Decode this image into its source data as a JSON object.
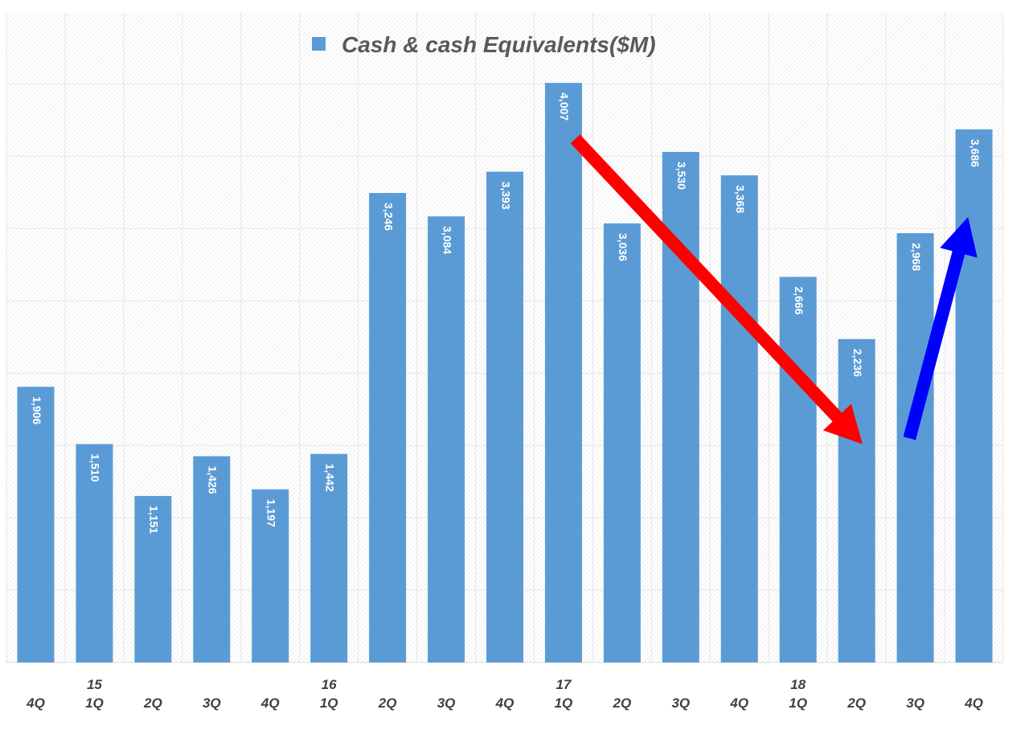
{
  "chart_data": {
    "type": "bar",
    "title": "Cash & cash Equivalents($M)",
    "legend": {
      "label": "Cash & cash Equivalents($M)",
      "placement": "top-center"
    },
    "categories": [
      "4Q",
      "1Q",
      "2Q",
      "3Q",
      "4Q",
      "1Q",
      "2Q",
      "3Q",
      "4Q",
      "1Q",
      "2Q",
      "3Q",
      "4Q",
      "1Q",
      "2Q",
      "3Q",
      "4Q"
    ],
    "year_labels": [
      "",
      "15",
      "",
      "",
      "",
      "16",
      "",
      "",
      "",
      "17",
      "",
      "",
      "",
      "18",
      "",
      "",
      ""
    ],
    "values": [
      1906,
      1510,
      1151,
      1426,
      1197,
      1442,
      3246,
      3084,
      3393,
      4007,
      3036,
      3530,
      3368,
      2666,
      2236,
      2968,
      3686
    ],
    "data_labels": [
      "1,906",
      "1,510",
      "1,151",
      "1,426",
      "1,197",
      "1,442",
      "3,246",
      "3,084",
      "3,393",
      "4,007",
      "3,036",
      "3,530",
      "3,368",
      "2,666",
      "2,236",
      "2,968",
      "3,686"
    ],
    "ylim": [
      0,
      4500
    ],
    "y_gridline_step": 500,
    "y_tick_labels_shown": false,
    "grid": true,
    "colors": {
      "bar": "#5b9bd5",
      "label": "#ffffff",
      "axis_text": "#404040",
      "title": "#595959",
      "down_arrow": "#ff0000",
      "up_arrow": "#0000ff",
      "grid": "#e6e6e6"
    },
    "annotations": [
      {
        "type": "arrow",
        "color": "#ff0000",
        "meaning": "decline",
        "from": {
          "x_index": 9.2,
          "y": 3620
        },
        "to": {
          "x_index": 14.1,
          "y": 1510
        }
      },
      {
        "type": "arrow",
        "color": "#0000ff",
        "meaning": "rise",
        "from": {
          "x_index": 14.9,
          "y": 1550
        },
        "to": {
          "x_index": 15.9,
          "y": 3080
        }
      }
    ]
  }
}
